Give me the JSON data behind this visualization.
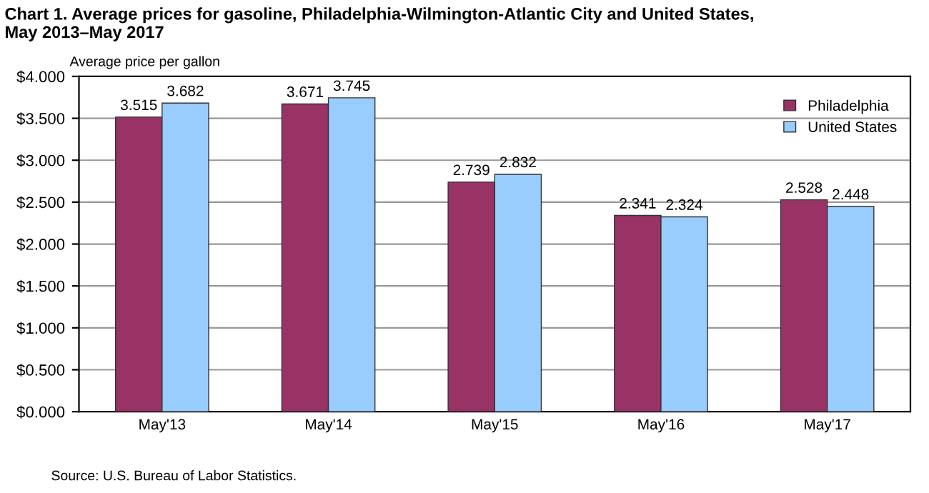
{
  "chart_data": {
    "type": "bar",
    "title": "Chart 1. Average prices for gasoline, Philadelphia-Wilmington-Atlantic City and United States,\nMay 2013–May 2017",
    "ylabel": "Average price per gallon",
    "categories": [
      "May'13",
      "May'14",
      "May'15",
      "May'16",
      "May'17"
    ],
    "series": [
      {
        "name": "Philadelphia",
        "color": "#993366",
        "values": [
          3.515,
          3.671,
          2.739,
          2.341,
          2.528
        ]
      },
      {
        "name": "United States",
        "color": "#99ccff",
        "values": [
          3.682,
          3.745,
          2.832,
          2.324,
          2.448
        ]
      }
    ],
    "ylim": [
      0,
      4
    ],
    "yticks": [
      {
        "value": 0,
        "label": "$0.000"
      },
      {
        "value": 0.5,
        "label": "$0.500"
      },
      {
        "value": 1,
        "label": "$1.000"
      },
      {
        "value": 1.5,
        "label": "$1.500"
      },
      {
        "value": 2,
        "label": "$2.000"
      },
      {
        "value": 2.5,
        "label": "$2.500"
      },
      {
        "value": 3,
        "label": "$3.000"
      },
      {
        "value": 3.5,
        "label": "$3.500"
      },
      {
        "value": 4,
        "label": "$4.000"
      }
    ],
    "grid": "y",
    "legend": "top right",
    "data_labels": true,
    "annotations": [
      "Source: U.S. Bureau of Labor Statistics."
    ]
  }
}
